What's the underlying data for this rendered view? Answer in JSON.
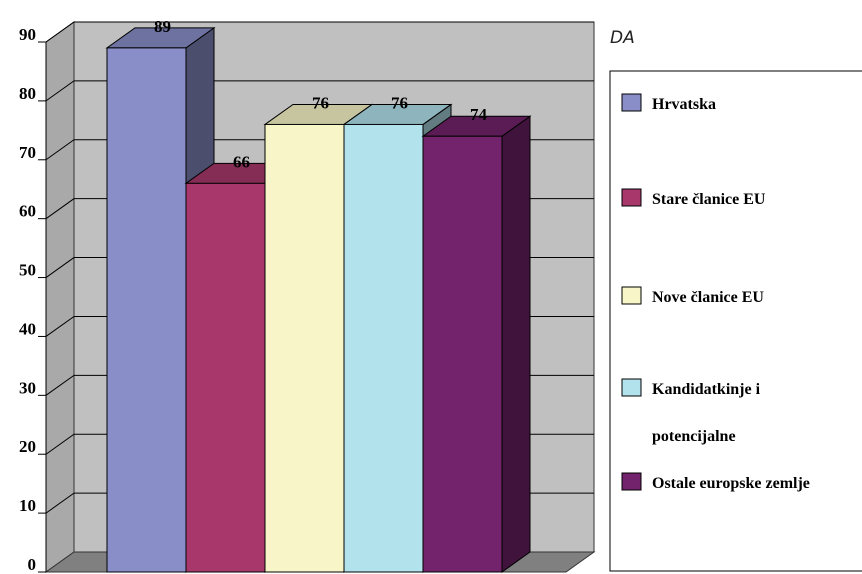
{
  "chart_data": {
    "type": "bar",
    "corner_label": "DA",
    "ylim": [
      0,
      90
    ],
    "yticks": [
      "0",
      "10",
      "20",
      "30",
      "40",
      "50",
      "60",
      "70",
      "80",
      "90"
    ],
    "categories": [
      "Hrvatska",
      "Stare članice EU",
      "Nove članice EU",
      "Kandidatkinje i potencijalne",
      "Ostale europske zemlje"
    ],
    "values": [
      89,
      66,
      76,
      76,
      74
    ],
    "data_labels": [
      "89",
      "66",
      "76",
      "76",
      "74"
    ],
    "colors": [
      "#8a8ec8",
      "#a8386c",
      "#f8f6c8",
      "#b2e2ec",
      "#72236c"
    ],
    "legend": {
      "position": "right",
      "entries": [
        {
          "lines": [
            "Hrvatska"
          ]
        },
        {
          "lines": [
            "Stare članice EU"
          ]
        },
        {
          "lines": [
            "Nove članice EU"
          ]
        },
        {
          "lines": [
            "Kandidatkinje i",
            "potencijalne"
          ]
        },
        {
          "lines": [
            "Ostale europske zemlje"
          ]
        }
      ]
    },
    "grid": true,
    "style": "3d"
  }
}
